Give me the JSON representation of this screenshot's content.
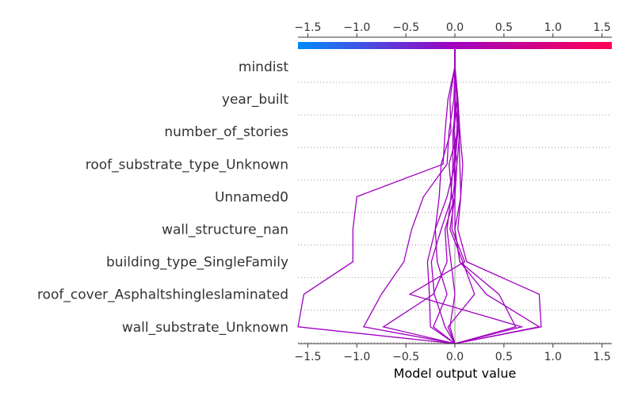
{
  "chart_data": {
    "type": "line",
    "chart_kind": "decision plot",
    "xlabel": "Model output value",
    "xlim": [
      -1.6,
      1.6
    ],
    "xticks": [
      "-1.5",
      "-1.0",
      "-0.5",
      "0.0",
      "0.5",
      "1.0",
      "1.5"
    ],
    "xtick_values": [
      -1.5,
      -1.0,
      -0.5,
      0.0,
      0.5,
      1.0,
      1.5
    ],
    "base_value": 0.0,
    "features": [
      "mindist",
      "year_built",
      "number_of_stories",
      "roof_substrate_type_Unknown",
      "Unnamed0",
      "wall_structure_nan",
      "building_type_SingleFamily",
      "roof_cover_Asphaltshingleslaminated",
      "wall_substrate_Unknown"
    ],
    "colormap": {
      "low": "#008bfb",
      "mid": "#a000c0",
      "high": "#ff0052"
    },
    "grid": "dotted horizontal lines under each feature",
    "series": [
      {
        "values": [
          0.0,
          -0.07,
          -0.1,
          -0.12,
          -1.0,
          -1.04,
          -1.04,
          -1.54,
          -1.6
        ]
      },
      {
        "values": [
          0.0,
          -0.01,
          -0.06,
          -0.08,
          -0.32,
          -0.44,
          -0.52,
          -0.75,
          -0.93
        ]
      },
      {
        "values": [
          0.0,
          0.0,
          -0.01,
          0.02,
          0.0,
          -0.1,
          -0.08,
          -0.22,
          -0.73
        ]
      },
      {
        "values": [
          0.0,
          0.0,
          0.03,
          0.0,
          -0.08,
          -0.2,
          -0.18,
          -0.08,
          -0.22
        ]
      },
      {
        "values": [
          0.0,
          -0.05,
          -0.04,
          -0.14,
          -0.16,
          -0.2,
          -0.28,
          -0.26,
          -0.25
        ]
      },
      {
        "values": [
          0.0,
          0.0,
          0.03,
          -0.06,
          -0.03,
          -0.14,
          -0.24,
          -0.21,
          -0.1
        ]
      },
      {
        "values": [
          0.0,
          0.02,
          -0.02,
          -0.02,
          -0.04,
          -0.08,
          -0.04,
          0.0,
          -0.05
        ]
      },
      {
        "values": [
          0.0,
          0.03,
          0.02,
          -0.01,
          0.0,
          -0.05,
          0.08,
          0.2,
          -0.07
        ]
      },
      {
        "values": [
          0.0,
          0.03,
          0.05,
          0.08,
          0.06,
          0.0,
          0.05,
          0.45,
          0.62
        ]
      },
      {
        "values": [
          0.0,
          0.02,
          -0.01,
          0.0,
          0.0,
          0.0,
          0.05,
          0.32,
          0.86
        ]
      },
      {
        "values": [
          0.0,
          0.02,
          0.04,
          0.05,
          0.06,
          0.03,
          0.12,
          0.86,
          0.88
        ]
      },
      {
        "values": [
          0.0,
          0.03,
          0.05,
          0.02,
          -0.02,
          -0.03,
          0.1,
          -0.46,
          0.68
        ]
      }
    ]
  }
}
